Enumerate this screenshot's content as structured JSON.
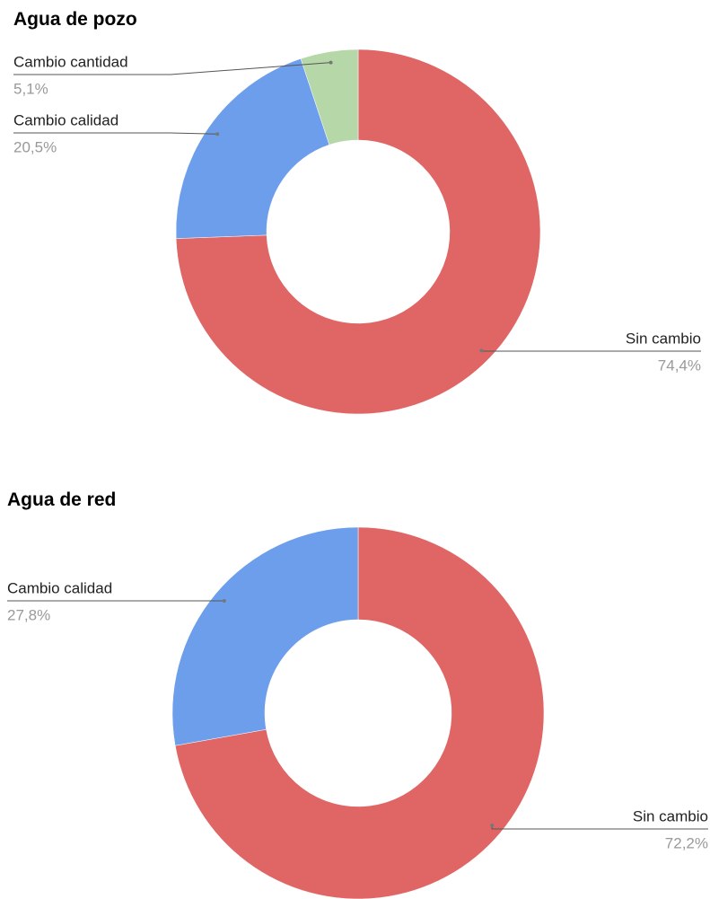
{
  "chart_data": [
    {
      "type": "donut",
      "title": "Agua de pozo",
      "categories": [
        "Sin cambio",
        "Cambio calidad",
        "Cambio cantidad"
      ],
      "values": [
        74.4,
        20.5,
        5.1
      ],
      "value_labels": [
        "74,4%",
        "20,5%",
        "5,1%"
      ],
      "colors": [
        "#e06666",
        "#6d9eeb",
        "#b6d7a8"
      ]
    },
    {
      "type": "donut",
      "title": "Agua de red",
      "categories": [
        "Sin cambio",
        "Cambio calidad"
      ],
      "values": [
        72.2,
        27.8
      ],
      "value_labels": [
        "72,2%",
        "27,8%"
      ],
      "colors": [
        "#e06666",
        "#6d9eeb"
      ]
    }
  ]
}
